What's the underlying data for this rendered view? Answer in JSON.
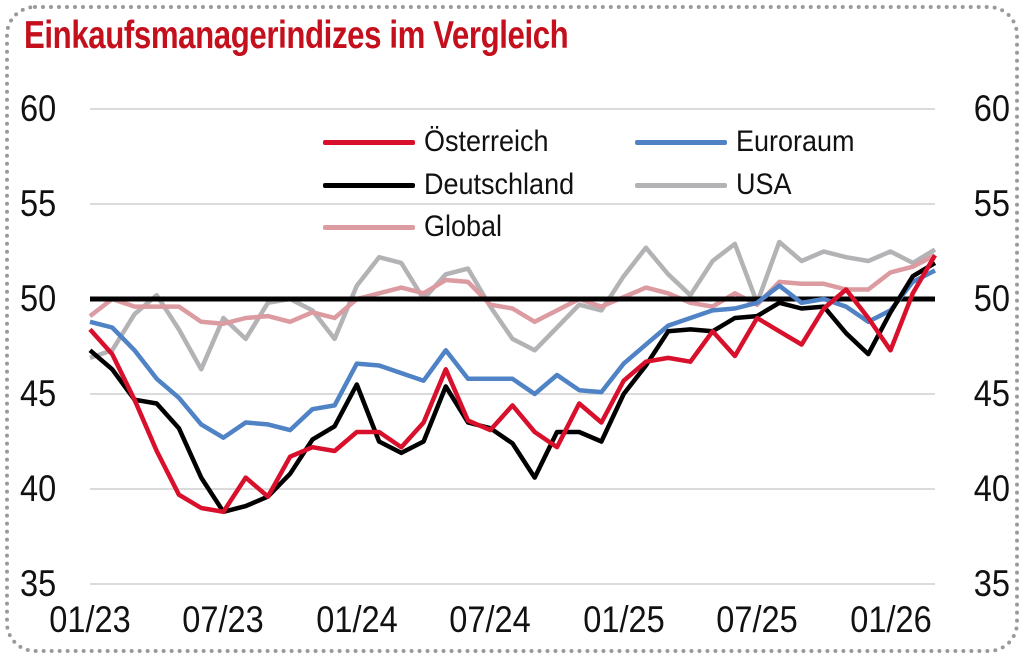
{
  "title": "Einkaufsmanagerindizes im Vergleich",
  "styles": {
    "title_color": "#c4101d",
    "grid_color": "#cfcfcf",
    "axis_text_color": "#111111",
    "border_color": "#9a9a9a",
    "reference_line_color": "#000000"
  },
  "chart_data": {
    "type": "line",
    "title": "Einkaufsmanagerindizes im Vergleich",
    "xlabel": "",
    "ylabel": "",
    "ylim": [
      35,
      60
    ],
    "y_ticks": [
      60,
      55,
      50,
      45,
      40,
      35
    ],
    "y_axis_sides": [
      "left",
      "right"
    ],
    "x_tick_labels": [
      "01/23",
      "07/23",
      "01/24",
      "07/24",
      "01/25",
      "07/25",
      "01/26"
    ],
    "grid": "horizontal",
    "reference_line": 50,
    "legend_position": "top-center-two-columns",
    "x": [
      "01/23",
      "02/23",
      "03/23",
      "04/23",
      "05/23",
      "06/23",
      "07/23",
      "08/23",
      "09/23",
      "10/23",
      "11/23",
      "12/23",
      "01/24",
      "02/24",
      "03/24",
      "04/24",
      "05/24",
      "06/24",
      "07/24",
      "08/24",
      "09/24",
      "10/24",
      "11/24",
      "12/24",
      "01/25",
      "02/25",
      "03/25",
      "04/25",
      "05/25",
      "06/25",
      "07/25",
      "08/25",
      "09/25",
      "10/25",
      "11/25",
      "12/25",
      "01/26",
      "02/26",
      "03/26"
    ],
    "series": [
      {
        "name": "Österreich",
        "color": "#d8102c",
        "values": [
          48.4,
          47.1,
          44.7,
          42.0,
          39.7,
          39.0,
          38.8,
          40.6,
          39.6,
          41.7,
          42.2,
          42.0,
          43.0,
          43.0,
          42.2,
          43.5,
          46.3,
          43.6,
          43.1,
          44.4,
          43.0,
          42.2,
          44.5,
          43.5,
          45.7,
          46.7,
          46.9,
          46.7,
          48.3,
          47.0,
          49.0,
          48.3,
          47.6,
          49.5,
          50.5,
          49.0,
          47.3,
          50.3,
          52.3
        ]
      },
      {
        "name": "Euroraum",
        "color": "#4f83c6",
        "values": [
          48.8,
          48.5,
          47.3,
          45.8,
          44.8,
          43.4,
          42.7,
          43.5,
          43.4,
          43.1,
          44.2,
          44.4,
          46.6,
          46.5,
          46.1,
          45.7,
          47.3,
          45.8,
          45.8,
          45.8,
          45.0,
          46.0,
          45.2,
          45.1,
          46.6,
          47.6,
          48.6,
          49.0,
          49.4,
          49.5,
          49.8,
          50.7,
          49.8,
          50.0,
          49.6,
          48.8,
          49.4,
          50.9,
          51.5
        ]
      },
      {
        "name": "Deutschland",
        "color": "#000000",
        "values": [
          47.3,
          46.3,
          44.7,
          44.5,
          43.2,
          40.6,
          38.8,
          39.1,
          39.6,
          40.8,
          42.6,
          43.3,
          45.5,
          42.5,
          41.9,
          42.5,
          45.4,
          43.5,
          43.2,
          42.4,
          40.6,
          43.0,
          43.0,
          42.5,
          45.0,
          46.5,
          48.3,
          48.4,
          48.3,
          49.0,
          49.1,
          49.8,
          49.5,
          49.6,
          48.2,
          47.1,
          49.3,
          51.2,
          51.9
        ]
      },
      {
        "name": "USA",
        "color": "#b3b3b6",
        "values": [
          46.9,
          47.3,
          49.2,
          50.2,
          48.4,
          46.3,
          49.0,
          47.9,
          49.8,
          50.0,
          49.4,
          47.9,
          50.7,
          52.2,
          51.9,
          50.0,
          51.3,
          51.6,
          49.6,
          47.9,
          47.3,
          48.5,
          49.7,
          49.4,
          51.2,
          52.7,
          51.3,
          50.2,
          52.0,
          52.9,
          49.8,
          53.0,
          52.0,
          52.5,
          52.2,
          52.0,
          52.5,
          51.9,
          52.6
        ]
      },
      {
        "name": "Global",
        "color": "#dc9aa1",
        "values": [
          49.1,
          50.0,
          49.6,
          49.6,
          49.6,
          48.8,
          48.7,
          49.0,
          49.1,
          48.8,
          49.3,
          49.0,
          50.0,
          50.3,
          50.6,
          50.3,
          51.0,
          50.9,
          49.7,
          49.5,
          48.8,
          49.4,
          50.0,
          49.6,
          50.1,
          50.6,
          50.3,
          49.8,
          49.6,
          50.3,
          49.7,
          50.9,
          50.8,
          50.8,
          50.5,
          50.5,
          51.4,
          51.7,
          52.3
        ]
      }
    ]
  }
}
